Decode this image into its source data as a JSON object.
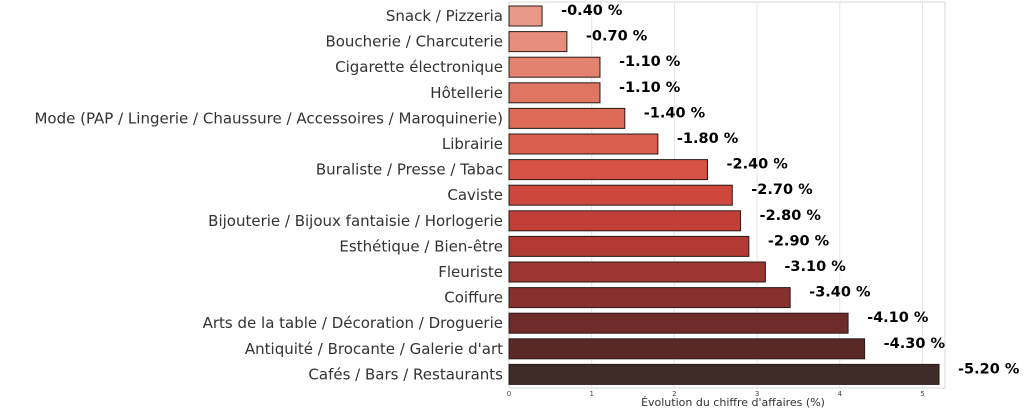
{
  "chart_data": {
    "type": "bar",
    "orientation": "horizontal",
    "title": "",
    "xlabel": "Évolution du chiffre d'affaires (%)",
    "ylabel": "",
    "xlim": [
      0,
      5.3
    ],
    "xticks": [
      0,
      1,
      2,
      3,
      4,
      5
    ],
    "grid": true,
    "categories": [
      "Snack / Pizzeria",
      "Boucherie / Charcuterie",
      "Cigarette électronique",
      "Hôtellerie",
      "Mode (PAP / Lingerie / Chaussure / Accessoires / Maroquinerie)",
      "Librairie",
      "Buraliste / Presse / Tabac",
      "Caviste",
      "Bijouterie / Bijoux fantaisie / Horlogerie",
      "Esthétique / Bien-être",
      "Fleuriste",
      "Coiffure",
      "Arts de la table / Décoration / Droguerie",
      "Antiquité / Brocante / Galerie d'art",
      "Cafés / Bars / Restaurants"
    ],
    "values": [
      -0.4,
      -0.7,
      -1.1,
      -1.1,
      -1.4,
      -1.8,
      -2.4,
      -2.7,
      -2.8,
      -2.9,
      -3.1,
      -3.4,
      -4.1,
      -4.3,
      -5.2
    ],
    "value_labels": [
      "-0.40 %",
      "-0.70 %",
      "-1.10 %",
      "-1.10 %",
      "-1.40 %",
      "-1.80 %",
      "-2.40 %",
      "-2.70 %",
      "-2.80 %",
      "-2.90 %",
      "-3.10 %",
      "-3.40 %",
      "-4.10 %",
      "-4.30 %",
      "-5.20 %"
    ],
    "colors": [
      "#e8998a",
      "#e68d7c",
      "#e3826f",
      "#e07563",
      "#dd6b58",
      "#da5f4d",
      "#d65244",
      "#cf473c",
      "#c23f37",
      "#b13a34",
      "#9d3532",
      "#87302e",
      "#6e2b29",
      "#5a2826",
      "#3d2b28"
    ]
  }
}
